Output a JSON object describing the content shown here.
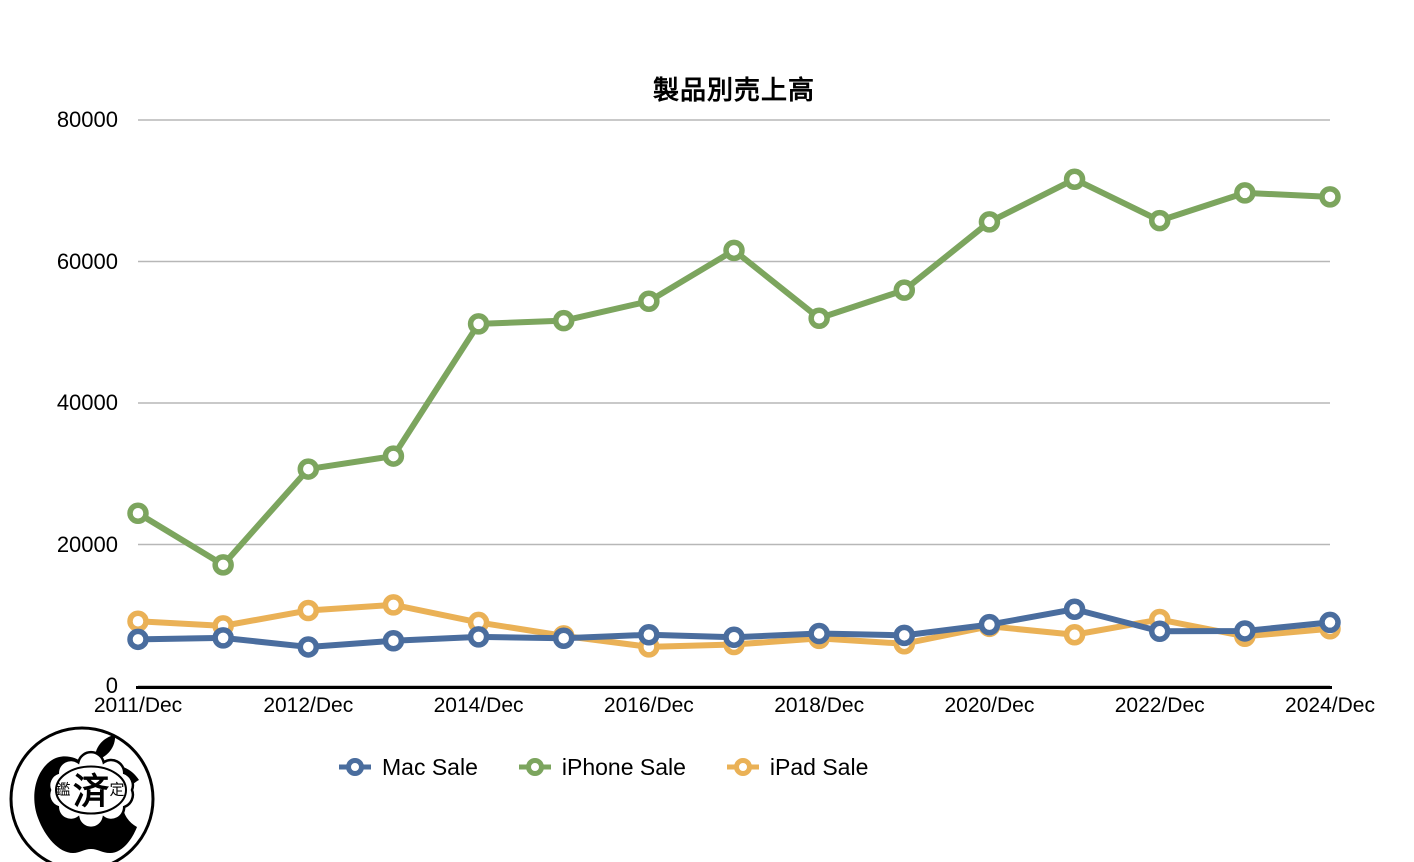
{
  "page": {
    "background_color": "#ffffff"
  },
  "chart_data": {
    "type": "line",
    "title": "製品別売上高",
    "xlabel": "",
    "ylabel": "",
    "ylim": [
      0,
      80000
    ],
    "y_ticks": [
      0,
      20000,
      40000,
      60000,
      80000
    ],
    "grid": "horizontal",
    "grid_color": "#b7b7b7",
    "axis_color": "#000000",
    "n_points": 15,
    "x_tick_indices": [
      0,
      2,
      4,
      6,
      8,
      10,
      12,
      14
    ],
    "x_tick_labels": [
      "2011/Dec",
      "2012/Dec",
      "2014/Dec",
      "2016/Dec",
      "2018/Dec",
      "2020/Dec",
      "2022/Dec",
      "2024/Dec"
    ],
    "legend_position": "bottom",
    "z_order": [
      1,
      2,
      0
    ],
    "series": [
      {
        "name": "Mac Sale",
        "color": "#4A6D9E",
        "values": [
          6598,
          6800,
          5519,
          6395,
          6944,
          6746,
          7244,
          6895,
          7416,
          7160,
          8675,
          10852,
          7735,
          7780,
          8987
        ]
      },
      {
        "name": "iPhone Sale",
        "color": "#7CA55E",
        "values": [
          24417,
          17125,
          30660,
          32498,
          51182,
          51635,
          54378,
          61576,
          51982,
          55957,
          65597,
          71628,
          65775,
          69702,
          69138
        ]
      },
      {
        "name": "iPad Sale",
        "color": "#EAB156",
        "values": [
          9153,
          8500,
          10674,
          11468,
          8985,
          7084,
          5533,
          5862,
          6729,
          5977,
          8435,
          7248,
          9396,
          7023,
          8088
        ]
      }
    ]
  },
  "logo": {
    "stamp_char_left": "鑑",
    "stamp_char_center": "済",
    "stamp_char_right": "定"
  }
}
